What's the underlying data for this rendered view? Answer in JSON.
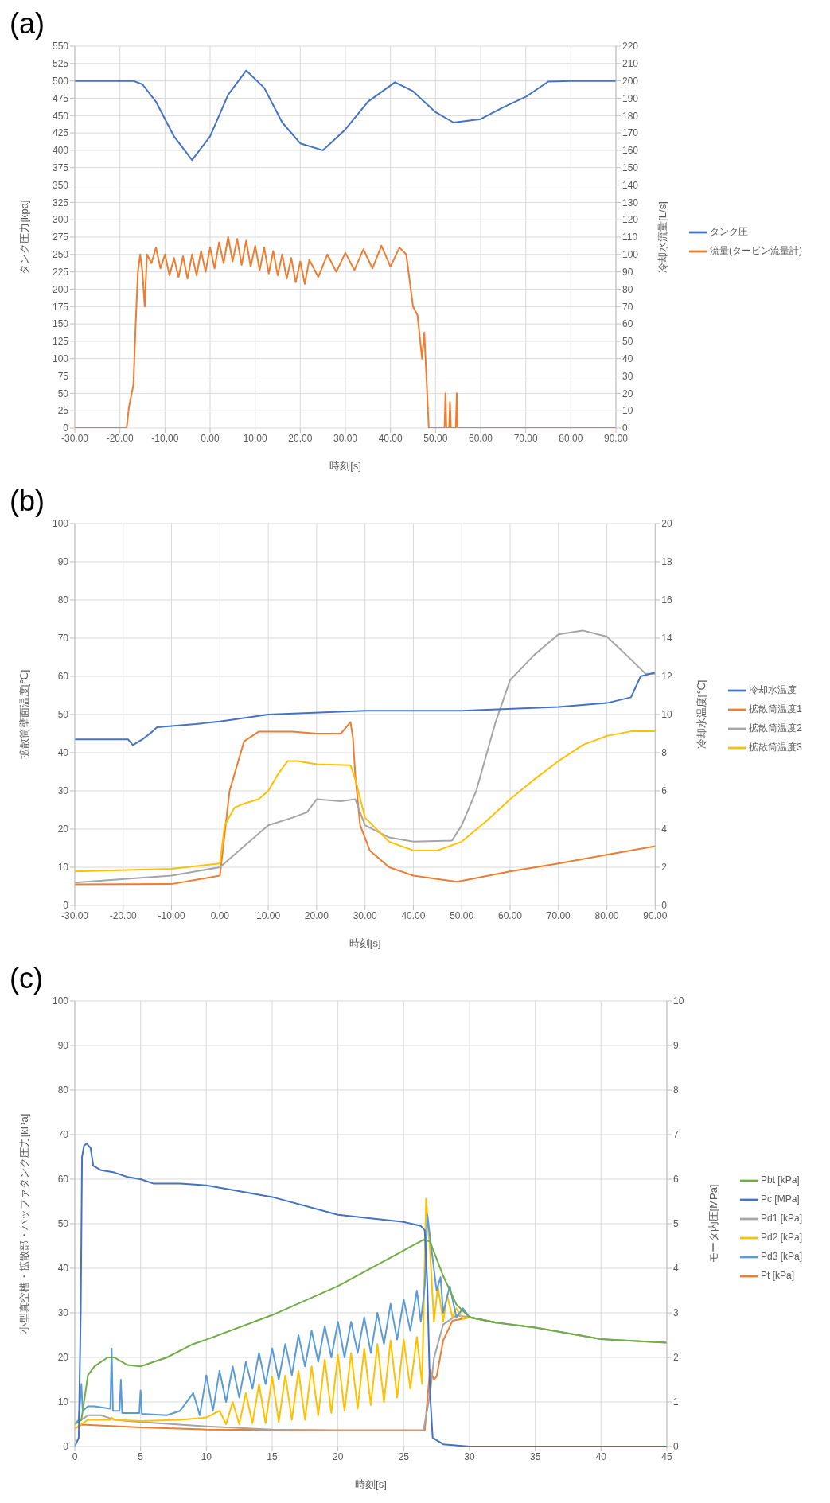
{
  "chart_data": [
    {
      "type": "line",
      "title": "(a)",
      "xlabel": "時刻[s]",
      "ylabel": "タンク圧力[kpa]",
      "y2label": "冷却水流量[L/s]",
      "xlim": [
        -30,
        90
      ],
      "xticks": [
        {
          "value": -30,
          "label": "-30.00"
        },
        {
          "value": -20,
          "label": "-20.00"
        },
        {
          "value": -10,
          "label": "-10.00"
        },
        {
          "value": 0,
          "label": "0.00"
        },
        {
          "value": 10,
          "label": "10.00"
        },
        {
          "value": 20,
          "label": "20.00"
        },
        {
          "value": 30,
          "label": "30.00"
        },
        {
          "value": 40,
          "label": "40.00"
        },
        {
          "value": 50,
          "label": "50.00"
        },
        {
          "value": 60,
          "label": "60.00"
        },
        {
          "value": 70,
          "label": "70.00"
        },
        {
          "value": 80,
          "label": "80.00"
        },
        {
          "value": 90,
          "label": "90.00"
        }
      ],
      "ylim": [
        0,
        550
      ],
      "yticks": [
        0,
        25,
        50,
        75,
        100,
        125,
        150,
        175,
        200,
        225,
        250,
        275,
        300,
        325,
        350,
        375,
        400,
        425,
        450,
        475,
        500,
        525,
        550
      ],
      "y2lim": [
        0,
        220
      ],
      "y2ticks": [
        0,
        10,
        20,
        30,
        40,
        50,
        60,
        70,
        80,
        90,
        100,
        110,
        120,
        130,
        140,
        150,
        160,
        170,
        180,
        190,
        200,
        210,
        220
      ],
      "grid": true,
      "legend": "right",
      "series": [
        {
          "name": "タンク圧",
          "color": "#4472c4",
          "x": [
            -30,
            -17,
            -15,
            -12,
            -8,
            -4,
            0,
            4,
            8,
            12,
            16,
            20,
            25,
            30,
            35,
            41,
            45,
            50,
            54,
            60,
            65,
            70,
            75,
            80,
            90
          ],
          "values": [
            500,
            500,
            495,
            470,
            420,
            386,
            420,
            480,
            515,
            490,
            440,
            410,
            400,
            430,
            470,
            498,
            485,
            455,
            440,
            445,
            462,
            477,
            499,
            500,
            500
          ]
        },
        {
          "name": "流量(タービン流量計)",
          "color": "#ed7d31",
          "axis": "y2",
          "x": [
            -30,
            -18.5,
            -18,
            -17,
            -16.5,
            -16,
            -15.5,
            -15,
            -14.5,
            -14,
            -13,
            -12,
            -11,
            -10,
            -9,
            -8,
            -7,
            -6,
            -5,
            -4,
            -3,
            -2,
            -1,
            0,
            1,
            2,
            3,
            4,
            5,
            6,
            7,
            8,
            9,
            10,
            11,
            12,
            13,
            14,
            15,
            16,
            17,
            18,
            19,
            20,
            21,
            22,
            24,
            26,
            28,
            30,
            32,
            34,
            36,
            38,
            40,
            42,
            43.5,
            44,
            45,
            46,
            47,
            47.5,
            48,
            48.5,
            52,
            52.2,
            52.4,
            53,
            53.2,
            53.4,
            54.5,
            54.7,
            54.9,
            90
          ],
          "values": [
            0,
            0,
            12,
            25,
            60,
            90,
            100,
            90,
            70,
            100,
            95,
            104,
            92,
            100,
            88,
            98,
            87,
            99,
            86,
            100,
            88,
            102,
            90,
            104,
            92,
            107,
            95,
            110,
            96,
            109,
            94,
            108,
            93,
            105,
            91,
            104,
            89,
            102,
            88,
            100,
            86,
            98,
            84,
            96,
            83,
            97,
            87,
            100,
            90,
            101,
            91,
            103,
            92,
            105,
            93,
            104,
            100,
            90,
            70,
            65,
            40,
            55,
            28,
            0,
            0,
            20,
            0,
            0,
            15,
            0,
            0,
            20,
            0,
            0
          ]
        }
      ]
    },
    {
      "type": "line",
      "title": "(b)",
      "xlabel": "時刻[s]",
      "ylabel": "拡散筒壁面温度[℃]",
      "y2label": "冷却水温度[℃]",
      "xlim": [
        -30,
        90
      ],
      "xticks": [
        {
          "value": -30,
          "label": "-30.00"
        },
        {
          "value": -20,
          "label": "-20.00"
        },
        {
          "value": -10,
          "label": "-10.00"
        },
        {
          "value": 0,
          "label": "0.00"
        },
        {
          "value": 10,
          "label": "10.00"
        },
        {
          "value": 20,
          "label": "20.00"
        },
        {
          "value": 30,
          "label": "30.00"
        },
        {
          "value": 40,
          "label": "40.00"
        },
        {
          "value": 50,
          "label": "50.00"
        },
        {
          "value": 60,
          "label": "60.00"
        },
        {
          "value": 70,
          "label": "70.00"
        },
        {
          "value": 80,
          "label": "80.00"
        },
        {
          "value": 90,
          "label": "90.00"
        }
      ],
      "ylim": [
        0,
        100
      ],
      "yticks": [
        0,
        10,
        20,
        30,
        40,
        50,
        60,
        70,
        80,
        90,
        100
      ],
      "y2lim": [
        0,
        20
      ],
      "y2ticks": [
        0,
        2,
        4,
        6,
        8,
        10,
        12,
        14,
        16,
        18,
        20
      ],
      "grid": true,
      "legend": "right",
      "series": [
        {
          "name": "拡散筒温度1",
          "color": "#ed7d31",
          "x": [
            -30,
            -10,
            0,
            2,
            5,
            8,
            15,
            20,
            25,
            27,
            27.5,
            28,
            29,
            31,
            35,
            40,
            49,
            60,
            70,
            80,
            90
          ],
          "values": [
            5.5,
            5.6,
            7.8,
            30,
            43,
            45.5,
            45.5,
            45,
            45,
            48,
            44,
            34,
            21,
            14.4,
            10,
            7.8,
            6.2,
            8.9,
            11,
            13.3,
            15.5
          ]
        },
        {
          "name": "拡散筒温度2",
          "color": "#a5a5a5",
          "x": [
            -30,
            -10,
            0,
            5,
            10,
            15,
            18,
            20,
            25,
            28,
            30,
            35,
            40,
            48,
            50,
            53,
            57,
            60,
            65,
            70,
            75,
            80,
            85,
            88,
            90
          ],
          "values": [
            6,
            7.8,
            10,
            15.5,
            21,
            23,
            24.4,
            27.8,
            27.3,
            27.8,
            21,
            17.8,
            16.7,
            17,
            21,
            30,
            48,
            59,
            65.6,
            71,
            72,
            70.4,
            64.4,
            60.7,
            60.7
          ]
        },
        {
          "name": "拡散筒温度3",
          "color": "#ffc000",
          "x": [
            -30,
            -10,
            0,
            1,
            3,
            5,
            8,
            10,
            12,
            14,
            16,
            20,
            27,
            28,
            30,
            35,
            40,
            45,
            50,
            55,
            60,
            65,
            70,
            75,
            80,
            85,
            90
          ],
          "values": [
            8.9,
            9.6,
            11,
            21,
            25.6,
            26.7,
            27.8,
            30,
            34.4,
            37.8,
            37.8,
            37,
            36.7,
            33,
            23,
            16.7,
            14.4,
            14.4,
            16.7,
            22,
            27.8,
            33,
            37.8,
            42,
            44.4,
            45.6,
            45.6
          ]
        },
        {
          "name": "冷却水温度",
          "color": "#4472c4",
          "axis": "y2",
          "x": [
            -30,
            -19,
            -18,
            -16,
            -14,
            -13,
            -5,
            0,
            10,
            30,
            50,
            70,
            80,
            85,
            87,
            90
          ],
          "values": [
            8.7,
            8.7,
            8.4,
            8.7,
            9.1,
            9.33,
            9.5,
            9.64,
            10,
            10.2,
            10.2,
            10.4,
            10.6,
            10.9,
            12,
            12.2
          ]
        }
      ]
    },
    {
      "type": "line",
      "title": "(c)",
      "xlabel": "時刻[s]",
      "ylabel": "小型真空槽・拡散部・バッファタンク圧力[kPa]",
      "y2label": "モータ内圧[MPa]",
      "xlim": [
        0,
        45
      ],
      "xticks": [
        0,
        5,
        10,
        15,
        20,
        25,
        30,
        35,
        40,
        45
      ],
      "ylim": [
        0,
        100
      ],
      "yticks": [
        0,
        10,
        20,
        30,
        40,
        50,
        60,
        70,
        80,
        90,
        100
      ],
      "y2lim": [
        0,
        10
      ],
      "y2ticks": [
        0,
        1,
        2,
        3,
        4,
        5,
        6,
        7,
        8,
        9,
        10
      ],
      "grid": true,
      "legend": "right",
      "series": [
        {
          "name": "Pt [kPa]",
          "color": "#ed7d31",
          "x": [
            0,
            0.5,
            5,
            10,
            20,
            26.6,
            27,
            27.3,
            27.5,
            28,
            28.7,
            30,
            32
          ],
          "values": [
            4,
            4.9,
            4.3,
            3.8,
            3.6,
            3.6,
            17.3,
            15,
            15.7,
            23.8,
            28.2,
            29,
            27.8
          ]
        },
        {
          "name": "Pd1 [kPa]",
          "color": "#a5a5a5",
          "x": [
            0,
            0.5,
            1,
            2,
            3,
            5,
            10,
            15,
            20,
            26.5,
            27,
            27.3,
            28,
            29,
            30,
            32,
            35,
            40,
            45
          ],
          "values": [
            5,
            6,
            7,
            7,
            6,
            5.5,
            4.5,
            3.8,
            3.6,
            3.6,
            11.7,
            19.8,
            27.4,
            29.4,
            29,
            27.8,
            26.7,
            24.1,
            23.3
          ]
        },
        {
          "name": "Pd2 [kPa]",
          "color": "#ffc000",
          "x": [
            0,
            0.5,
            1,
            2.7,
            2.8,
            3,
            5,
            8,
            10,
            11,
            11.5,
            12,
            12.5,
            13,
            13.5,
            14,
            14.5,
            15,
            15.5,
            16,
            16.5,
            17,
            17.5,
            18,
            18.5,
            19,
            19.5,
            20,
            20.5,
            21,
            21.5,
            22,
            22.5,
            23,
            23.5,
            24,
            24.5,
            25,
            25.5,
            26,
            26.4,
            26.7,
            27,
            27.3,
            27.6,
            28,
            28.3,
            28.7,
            29,
            29.5,
            30,
            32
          ],
          "values": [
            4,
            5,
            6,
            6,
            6.5,
            6,
            5.7,
            6,
            6.5,
            8,
            5,
            10,
            5,
            12,
            5.2,
            14,
            5.2,
            15.7,
            5.5,
            16,
            6,
            17,
            6,
            18,
            7,
            19.5,
            7.5,
            20.6,
            8,
            21,
            8.5,
            22,
            9.3,
            23,
            10,
            23.8,
            11,
            24,
            13,
            24.6,
            14,
            55.6,
            44,
            28,
            36,
            28,
            34,
            29,
            31,
            28.6,
            29,
            27.8
          ]
        },
        {
          "name": "Pd3 [kPa]",
          "color": "#5b9bd5",
          "x": [
            0,
            0.3,
            0.5,
            0.6,
            1,
            1.5,
            2.7,
            2.8,
            2.9,
            3.4,
            3.5,
            3.6,
            4.9,
            5,
            5.1,
            7,
            8,
            9,
            9.5,
            10,
            10.5,
            11,
            11.5,
            12,
            12.5,
            13,
            13.5,
            14,
            14.5,
            15,
            15.5,
            16,
            16.5,
            17,
            17.5,
            18,
            18.5,
            19,
            19.5,
            20,
            20.5,
            21,
            21.5,
            22,
            22.5,
            23,
            23.5,
            24,
            24.5,
            25,
            25.5,
            26,
            26.3,
            26.6,
            26.8,
            27,
            27.5,
            27.8,
            28,
            28.5,
            29,
            29.5,
            30,
            32
          ],
          "values": [
            5,
            6,
            14,
            8,
            9,
            9,
            8.5,
            22,
            8,
            8,
            15,
            7.5,
            7.5,
            12.6,
            7.3,
            7,
            8,
            12,
            7,
            16,
            8,
            17,
            10,
            18,
            11,
            19,
            13,
            21,
            14,
            22,
            15,
            23,
            16,
            25,
            18,
            26,
            19,
            27,
            20,
            28,
            20,
            28,
            21,
            29,
            21,
            30,
            23,
            32,
            24,
            33,
            26,
            35,
            28,
            36,
            52,
            47,
            35,
            38,
            30,
            36,
            29,
            31,
            29,
            27.8
          ]
        },
        {
          "name": "Pbt [kPa]",
          "color": "#70ad47",
          "x": [
            0,
            0.5,
            1,
            1.5,
            2.5,
            3,
            4,
            5,
            7,
            9,
            10,
            15,
            20,
            25,
            26.5,
            27,
            28,
            29,
            30,
            32,
            35,
            40,
            45
          ],
          "values": [
            5,
            6,
            16,
            18,
            20,
            20,
            18.3,
            18,
            20,
            23,
            24,
            29.5,
            36,
            44,
            46.4,
            46,
            38.3,
            31.9,
            29,
            27.8,
            26.7,
            24.1,
            23.3
          ]
        },
        {
          "name": "Pc [MPa]",
          "color": "#4472c4",
          "axis": "y2",
          "x": [
            0,
            0.3,
            0.45,
            0.55,
            0.7,
            0.9,
            1.2,
            1.4,
            2,
            3,
            4,
            5,
            6,
            8,
            10,
            15,
            20,
            25,
            26.3,
            26.6,
            26.8,
            27,
            27.2,
            28,
            30,
            45
          ],
          "values": [
            0,
            0.2,
            3,
            6.5,
            6.75,
            6.8,
            6.7,
            6.3,
            6.2,
            6.15,
            6.05,
            6,
            5.9,
            5.9,
            5.86,
            5.6,
            5.2,
            5.04,
            4.95,
            4.85,
            3.6,
            1.2,
            0.2,
            0.05,
            0,
            0
          ]
        }
      ]
    }
  ]
}
